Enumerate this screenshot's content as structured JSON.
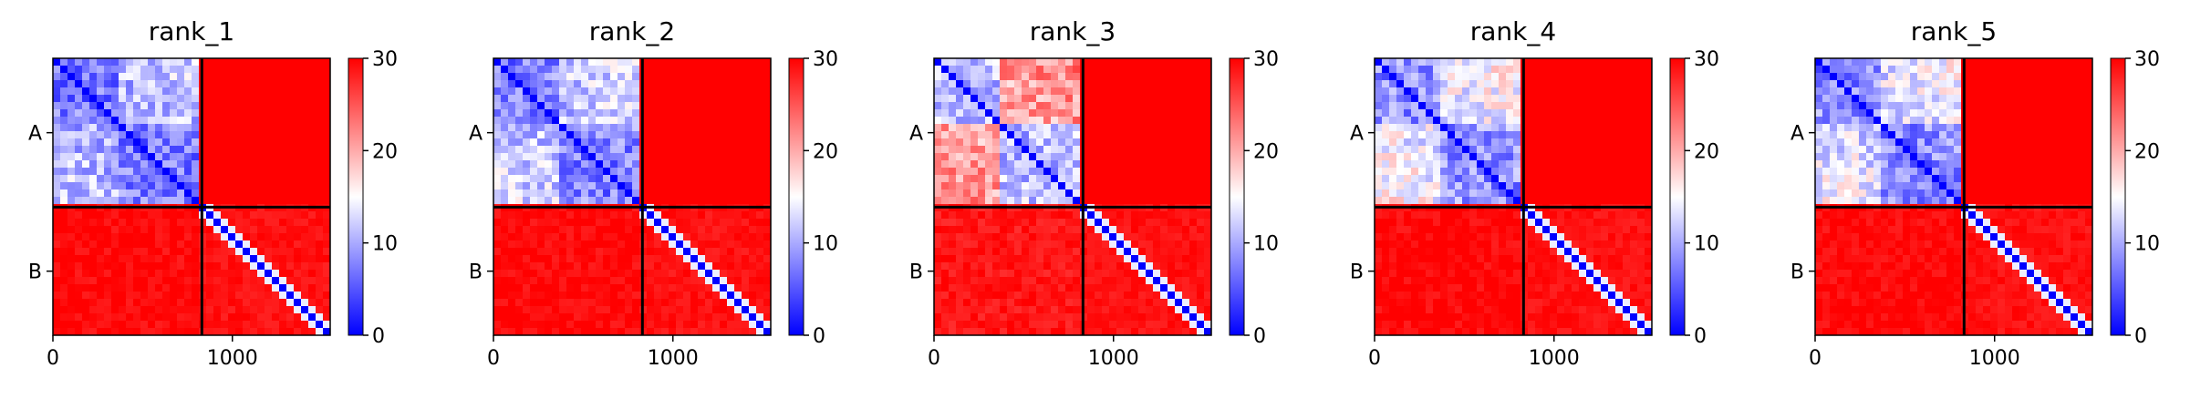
{
  "colorbar": {
    "colormap": "bwr",
    "colors": {
      "low": "#0000ff",
      "mid": "#ffffff",
      "high": "#ff0000"
    },
    "range": [
      0,
      30
    ],
    "ticks": [
      "0",
      "10",
      "20",
      "30"
    ]
  },
  "chart_data": [
    {
      "type": "heatmap",
      "title": "rank_1",
      "x_ticks": [
        "0",
        "1000"
      ],
      "x_range": [
        0,
        1545
      ],
      "y_ticks": [
        "A",
        "B"
      ],
      "chain_boundary": 830,
      "chains": [
        {
          "name": "A",
          "start": 0,
          "end": 830
        },
        {
          "name": "B",
          "start": 830,
          "end": 1545
        }
      ],
      "domains": [
        [
          0,
          370
        ],
        [
          370,
          830
        ],
        [
          830,
          1545
        ]
      ],
      "block_means": {
        "A-A": 6.5,
        "A-B": 30,
        "B-A": 30,
        "B-B": 29,
        "A_domain1-A_domain2": 9.5
      },
      "vmin": 0,
      "vmax": 30
    },
    {
      "type": "heatmap",
      "title": "rank_2",
      "x_ticks": [
        "0",
        "1000"
      ],
      "x_range": [
        0,
        1545
      ],
      "y_ticks": [
        "A",
        "B"
      ],
      "chain_boundary": 830,
      "chains": [
        {
          "name": "A",
          "start": 0,
          "end": 830
        },
        {
          "name": "B",
          "start": 830,
          "end": 1545
        }
      ],
      "domains": [
        [
          0,
          370
        ],
        [
          370,
          830
        ],
        [
          830,
          1545
        ]
      ],
      "block_means": {
        "A-A": 7.0,
        "A-B": 30,
        "B-A": 30,
        "B-B": 29,
        "A_domain1-A_domain2": 10.5
      },
      "vmin": 0,
      "vmax": 30
    },
    {
      "type": "heatmap",
      "title": "rank_3",
      "x_ticks": [
        "0",
        "1000"
      ],
      "x_range": [
        0,
        1545
      ],
      "y_ticks": [
        "A",
        "B"
      ],
      "chain_boundary": 830,
      "chains": [
        {
          "name": "A",
          "start": 0,
          "end": 830
        },
        {
          "name": "B",
          "start": 830,
          "end": 1545
        }
      ],
      "domains": [
        [
          0,
          370
        ],
        [
          370,
          830
        ],
        [
          830,
          1545
        ]
      ],
      "block_means": {
        "A-A": 10.5,
        "A-B": 30,
        "B-A": 29,
        "B-B": 29,
        "A_domain1-A_domain2": 19.5
      },
      "vmin": 0,
      "vmax": 30
    },
    {
      "type": "heatmap",
      "title": "rank_4",
      "x_ticks": [
        "0",
        "1000"
      ],
      "x_range": [
        0,
        1545
      ],
      "y_ticks": [
        "A",
        "B"
      ],
      "chain_boundary": 830,
      "chains": [
        {
          "name": "A",
          "start": 0,
          "end": 830
        },
        {
          "name": "B",
          "start": 830,
          "end": 1545
        }
      ],
      "domains": [
        [
          0,
          370
        ],
        [
          370,
          830
        ],
        [
          830,
          1545
        ]
      ],
      "block_means": {
        "A-A": 8.0,
        "A-B": 30,
        "B-A": 30,
        "B-B": 29,
        "A_domain1-A_domain2": 13
      },
      "vmin": 0,
      "vmax": 30
    },
    {
      "type": "heatmap",
      "title": "rank_5",
      "x_ticks": [
        "0",
        "1000"
      ],
      "x_range": [
        0,
        1545
      ],
      "y_ticks": [
        "A",
        "B"
      ],
      "chain_boundary": 830,
      "chains": [
        {
          "name": "A",
          "start": 0,
          "end": 830
        },
        {
          "name": "B",
          "start": 830,
          "end": 1545
        }
      ],
      "domains": [
        [
          0,
          370
        ],
        [
          370,
          830
        ],
        [
          830,
          1545
        ]
      ],
      "block_means": {
        "A-A": 7.5,
        "A-B": 30,
        "B-A": 30,
        "B-B": 29,
        "A_domain1-A_domain2": 12
      },
      "vmin": 0,
      "vmax": 30
    }
  ]
}
